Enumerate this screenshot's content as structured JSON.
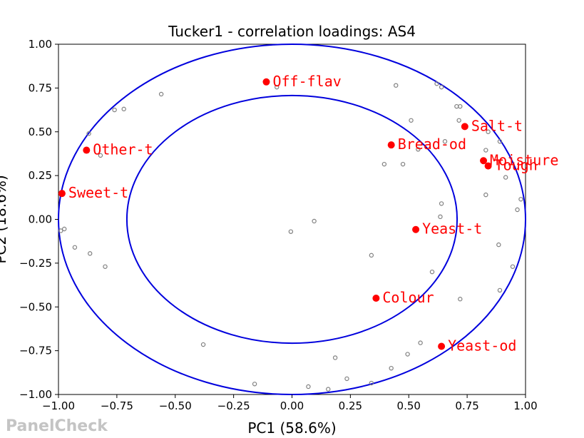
{
  "chart_data": {
    "type": "scatter",
    "title": "Tucker1 - correlation loadings: AS4",
    "xlabel": "PC1 (58.6%)",
    "ylabel": "PC2 (18.6%)",
    "xlim": [
      -1.0,
      1.0
    ],
    "ylim": [
      -1.0,
      1.0
    ],
    "xticks": [
      -1.0,
      -0.75,
      -0.5,
      -0.25,
      0.0,
      0.25,
      0.5,
      0.75,
      1.0
    ],
    "yticks": [
      -1.0,
      -0.75,
      -0.5,
      -0.25,
      0.0,
      0.25,
      0.5,
      0.75,
      1.0
    ],
    "xtick_labels": [
      "−1.00",
      "−0.75",
      "−0.50",
      "−0.25",
      "0.00",
      "0.25",
      "0.50",
      "0.75",
      "1.00"
    ],
    "ytick_labels": [
      "−1.00",
      "−0.75",
      "−0.50",
      "−0.25",
      "0.00",
      "0.25",
      "0.50",
      "0.75",
      "1.00"
    ],
    "grid": false,
    "circles": [
      {
        "radius": 1.0,
        "color": "#0000dd"
      },
      {
        "radius": 0.7071,
        "color": "#0000dd"
      }
    ],
    "attributes": {
      "color": "#ff0000",
      "points": [
        {
          "label": "Off-flav",
          "x": -0.11,
          "y": 0.785
        },
        {
          "label": "Salt-t",
          "x": 0.74,
          "y": 0.53
        },
        {
          "label": "Other-t",
          "x": -0.88,
          "y": 0.395
        },
        {
          "label": "Bread-od",
          "x": 0.425,
          "y": 0.425
        },
        {
          "label": "Moisture",
          "x": 0.82,
          "y": 0.335
        },
        {
          "label": "Tough",
          "x": 0.84,
          "y": 0.305
        },
        {
          "label": "Sweet-t",
          "x": -0.985,
          "y": 0.148
        },
        {
          "label": "Yeast-t",
          "x": 0.53,
          "y": -0.058
        },
        {
          "label": "Colour",
          "x": 0.36,
          "y": -0.45
        },
        {
          "label": "Yeast-od",
          "x": 0.64,
          "y": -0.725
        }
      ]
    },
    "assessors": {
      "color": "#808080",
      "points": [
        {
          "x": -0.56,
          "y": 0.715
        },
        {
          "x": -0.065,
          "y": 0.755
        },
        {
          "x": 0.445,
          "y": 0.765
        },
        {
          "x": 0.62,
          "y": 0.775
        },
        {
          "x": 0.64,
          "y": 0.755
        },
        {
          "x": -0.76,
          "y": 0.625
        },
        {
          "x": -0.72,
          "y": 0.63
        },
        {
          "x": 0.705,
          "y": 0.645
        },
        {
          "x": 0.72,
          "y": 0.645
        },
        {
          "x": 0.51,
          "y": 0.565
        },
        {
          "x": 0.715,
          "y": 0.565
        },
        {
          "x": -0.87,
          "y": 0.49
        },
        {
          "x": 0.84,
          "y": 0.5
        },
        {
          "x": 0.89,
          "y": 0.445
        },
        {
          "x": 0.655,
          "y": 0.445
        },
        {
          "x": -0.82,
          "y": 0.365
        },
        {
          "x": 0.54,
          "y": 0.4
        },
        {
          "x": 0.83,
          "y": 0.395
        },
        {
          "x": 0.395,
          "y": 0.315
        },
        {
          "x": 0.475,
          "y": 0.315
        },
        {
          "x": 0.915,
          "y": 0.24
        },
        {
          "x": 0.83,
          "y": 0.14
        },
        {
          "x": 0.98,
          "y": 0.115
        },
        {
          "x": 0.64,
          "y": 0.09
        },
        {
          "x": 0.965,
          "y": 0.055
        },
        {
          "x": 0.635,
          "y": 0.015
        },
        {
          "x": 0.095,
          "y": -0.01
        },
        {
          "x": -0.005,
          "y": -0.07
        },
        {
          "x": -0.99,
          "y": -0.065
        },
        {
          "x": -0.975,
          "y": -0.055
        },
        {
          "x": -0.93,
          "y": -0.16
        },
        {
          "x": -0.865,
          "y": -0.195
        },
        {
          "x": 0.34,
          "y": -0.205
        },
        {
          "x": 0.885,
          "y": -0.145
        },
        {
          "x": -0.8,
          "y": -0.27
        },
        {
          "x": 0.945,
          "y": -0.27
        },
        {
          "x": 0.6,
          "y": -0.3
        },
        {
          "x": 0.89,
          "y": -0.405
        },
        {
          "x": 0.72,
          "y": -0.455
        },
        {
          "x": -0.38,
          "y": -0.715
        },
        {
          "x": 0.55,
          "y": -0.705
        },
        {
          "x": 0.495,
          "y": -0.77
        },
        {
          "x": 0.185,
          "y": -0.79
        },
        {
          "x": 0.425,
          "y": -0.85
        },
        {
          "x": 0.235,
          "y": -0.91
        },
        {
          "x": 0.34,
          "y": -0.935
        },
        {
          "x": -0.16,
          "y": -0.94
        },
        {
          "x": 0.07,
          "y": -0.955
        },
        {
          "x": 0.155,
          "y": -0.97
        }
      ]
    }
  },
  "watermark": "PanelCheck"
}
